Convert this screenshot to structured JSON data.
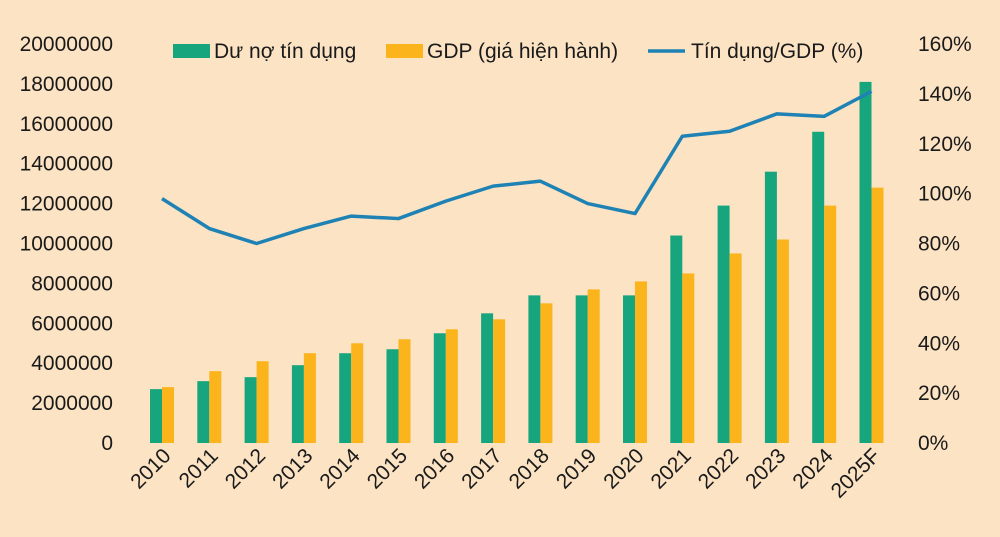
{
  "chart_data": {
    "type": "bar",
    "categories": [
      "2010",
      "2011",
      "2012",
      "2013",
      "2014",
      "2015",
      "2016",
      "2017",
      "2018",
      "2019",
      "2020",
      "2021",
      "2022",
      "2023",
      "2024",
      "2025F"
    ],
    "series": [
      {
        "name": "Dư nợ tín dụng",
        "type": "bar",
        "axis": "left",
        "color": "#17a57e",
        "values": [
          2700000,
          3100000,
          3300000,
          3900000,
          4500000,
          4700000,
          5500000,
          6500000,
          7400000,
          7400000,
          7400000,
          10400000,
          11900000,
          13600000,
          15600000,
          18100000
        ]
      },
      {
        "name": "GDP (giá hiện hành)",
        "type": "bar",
        "axis": "left",
        "color": "#fbb41b",
        "values": [
          2800000,
          3600000,
          4100000,
          4500000,
          5000000,
          5200000,
          5700000,
          6200000,
          7000000,
          7700000,
          8100000,
          8500000,
          9500000,
          10200000,
          11900000,
          12800000
        ]
      },
      {
        "name": "Tín dụng/GDP (%)",
        "type": "line",
        "axis": "right",
        "color": "#1f82b4",
        "values": [
          98,
          86,
          80,
          86,
          91,
          90,
          97,
          103,
          105,
          96,
          92,
          123,
          125,
          132,
          131,
          141
        ]
      }
    ],
    "y_left": {
      "min": 0,
      "max": 20000000,
      "ticks": [
        "0",
        "2000000",
        "4000000",
        "6000000",
        "8000000",
        "10000000",
        "12000000",
        "14000000",
        "16000000",
        "18000000",
        "20000000"
      ]
    },
    "y_right": {
      "min": 0,
      "max": 160,
      "ticks": [
        "0%",
        "20%",
        "40%",
        "60%",
        "80%",
        "100%",
        "120%",
        "140%",
        "160%"
      ]
    },
    "legend_position": "top",
    "title": "",
    "xlabel": "",
    "ylabel": ""
  }
}
